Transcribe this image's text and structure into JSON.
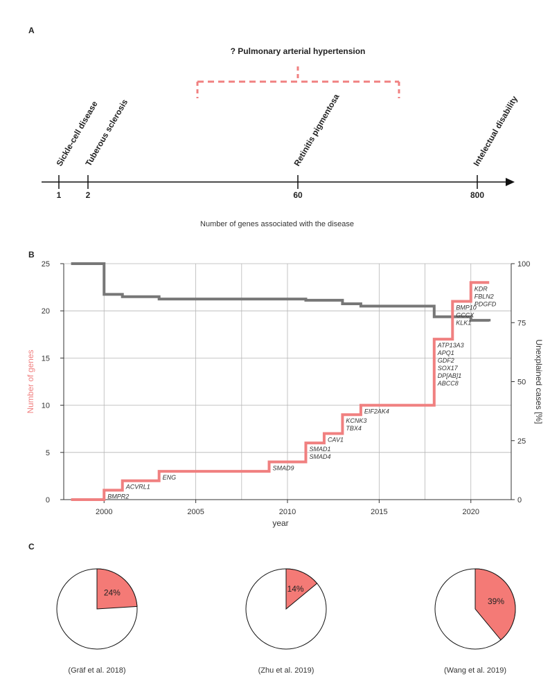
{
  "panels": {
    "a": "A",
    "b": "B",
    "c": "C"
  },
  "panel_a": {
    "title": "? Pulmonary arterial hypertension",
    "axis_label": "Number of genes associated with the disease",
    "points": [
      {
        "value": "1",
        "disease": "Sickle-cell disease"
      },
      {
        "value": "2",
        "disease": "Tuberous sclerosis"
      },
      {
        "value": "60",
        "disease": "Retinitis pigmentosa"
      },
      {
        "value": "800",
        "disease": "Intelectual disability"
      }
    ]
  },
  "chart_data": [
    {
      "type": "line",
      "title": "",
      "xlabel": "year",
      "ylabel": "Number of genes",
      "y2label": "Unexplained cases [%]",
      "xlim": [
        1997.8,
        2022.2
      ],
      "ylim": [
        0,
        25
      ],
      "y2lim": [
        0,
        100
      ],
      "xticks": [
        "2000",
        "2005",
        "2010",
        "2015",
        "2020"
      ],
      "yticks": [
        "0",
        "5",
        "10",
        "15",
        "20",
        "25"
      ],
      "y2ticks": [
        "0",
        "25",
        "50",
        "75",
        "100"
      ],
      "colors": {
        "genes": "#f08080",
        "unexplained": "#777777"
      },
      "series": [
        {
          "name": "Number of genes",
          "axis": "left",
          "x": [
            1998.2,
            2000,
            2001,
            2003,
            2009,
            2011,
            2012,
            2013,
            2014,
            2018,
            2019,
            2020,
            2021
          ],
          "y": [
            0,
            1,
            2,
            3,
            4,
            6,
            7,
            9,
            10,
            17,
            21,
            23,
            23
          ]
        },
        {
          "name": "Unexplained cases [%]",
          "axis": "right",
          "x": [
            1998.2,
            2000,
            2001,
            2003,
            2011,
            2013,
            2014,
            2017.5,
            2018,
            2020,
            2021
          ],
          "y": [
            100,
            87,
            86,
            85,
            84.5,
            83,
            82,
            82,
            77.5,
            76,
            75.5
          ]
        }
      ],
      "annotations": [
        {
          "x": 2000,
          "y": 1,
          "lines": [
            "BMPR2"
          ]
        },
        {
          "x": 2001,
          "y": 2,
          "lines": [
            "ACVRL1"
          ]
        },
        {
          "x": 2003,
          "y": 3,
          "lines": [
            "ENG"
          ]
        },
        {
          "x": 2009,
          "y": 4,
          "lines": [
            "SMAD9"
          ]
        },
        {
          "x": 2011,
          "y": 6,
          "lines": [
            "SMAD1",
            "SMAD4"
          ]
        },
        {
          "x": 2012,
          "y": 7,
          "lines": [
            "CAV1"
          ]
        },
        {
          "x": 2013,
          "y": 9,
          "lines": [
            "KCNK3",
            "TBX4"
          ]
        },
        {
          "x": 2014,
          "y": 10,
          "lines": [
            "EIF2AK4"
          ]
        },
        {
          "x": 2018,
          "y": 17,
          "lines": [
            "ATP13A3",
            "APQ1",
            "GDF2",
            "SOX17",
            "DP[AB]1",
            "ABCC8"
          ]
        },
        {
          "x": 2019,
          "y": 21,
          "lines": [
            "BMP10",
            "GCCX",
            "KLK1"
          ]
        },
        {
          "x": 2020,
          "y": 23,
          "lines": [
            "KDR",
            "FBLN2",
            "PDGFD"
          ]
        }
      ]
    },
    {
      "type": "pie",
      "pies": [
        {
          "label": "24%",
          "value": 24,
          "caption": "(Gräf et al. 2018)"
        },
        {
          "label": "14%",
          "value": 14,
          "caption": "(Zhu et al. 2019)"
        },
        {
          "label": "39%",
          "value": 39,
          "caption": "(Wang et al. 2019)"
        }
      ],
      "colors": {
        "slice": "#f47a76",
        "rest": "#ffffff",
        "stroke": "#111111"
      }
    }
  ]
}
